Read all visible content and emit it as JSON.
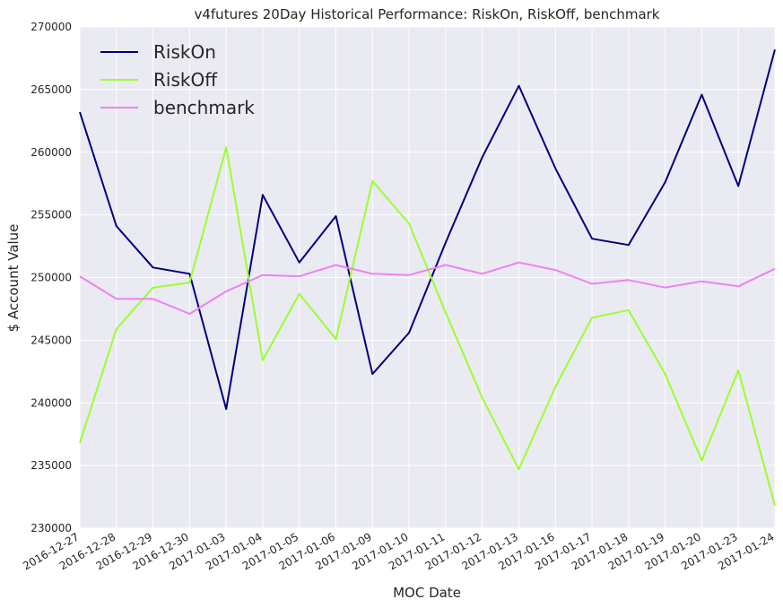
{
  "chart_data": {
    "type": "line",
    "title": "v4futures 20Day Historical Performance: RiskOn, RiskOff, benchmark",
    "xlabel": "MOC Date",
    "ylabel": "$ Account Value",
    "categories": [
      "2016-12-27",
      "2016-12-28",
      "2016-12-29",
      "2016-12-30",
      "2017-01-03",
      "2017-01-04",
      "2017-01-05",
      "2017-01-06",
      "2017-01-09",
      "2017-01-10",
      "2017-01-11",
      "2017-01-12",
      "2017-01-13",
      "2017-01-16",
      "2017-01-17",
      "2017-01-18",
      "2017-01-19",
      "2017-01-20",
      "2017-01-23",
      "2017-01-24"
    ],
    "ylim": [
      230000,
      270000
    ],
    "yticks": [
      230000,
      235000,
      240000,
      245000,
      250000,
      255000,
      260000,
      265000,
      270000
    ],
    "grid": true,
    "legend_position": "top-left",
    "colors": {
      "plot_background": "#EAEAF2",
      "grid": "#FFFFFF"
    },
    "series": [
      {
        "name": "RiskOn",
        "color": "#000080",
        "values": [
          263200,
          254100,
          250800,
          250300,
          239500,
          256600,
          251200,
          254900,
          242300,
          245600,
          252800,
          259600,
          265300,
          258700,
          253100,
          252600,
          257600,
          264600,
          257300,
          268200
        ]
      },
      {
        "name": "RiskOff",
        "color": "#9AFF2E",
        "values": [
          236800,
          245900,
          249200,
          249600,
          260400,
          243400,
          248700,
          245100,
          257700,
          254300,
          247200,
          240400,
          234700,
          241300,
          246800,
          247400,
          242300,
          235400,
          242600,
          231800
        ]
      },
      {
        "name": "benchmark",
        "color": "#EE82EE",
        "values": [
          250100,
          248300,
          248300,
          247100,
          248900,
          250200,
          250100,
          251000,
          250300,
          250200,
          251000,
          250300,
          251200,
          250600,
          249500,
          249800,
          249200,
          249700,
          249300,
          250700
        ]
      }
    ]
  }
}
